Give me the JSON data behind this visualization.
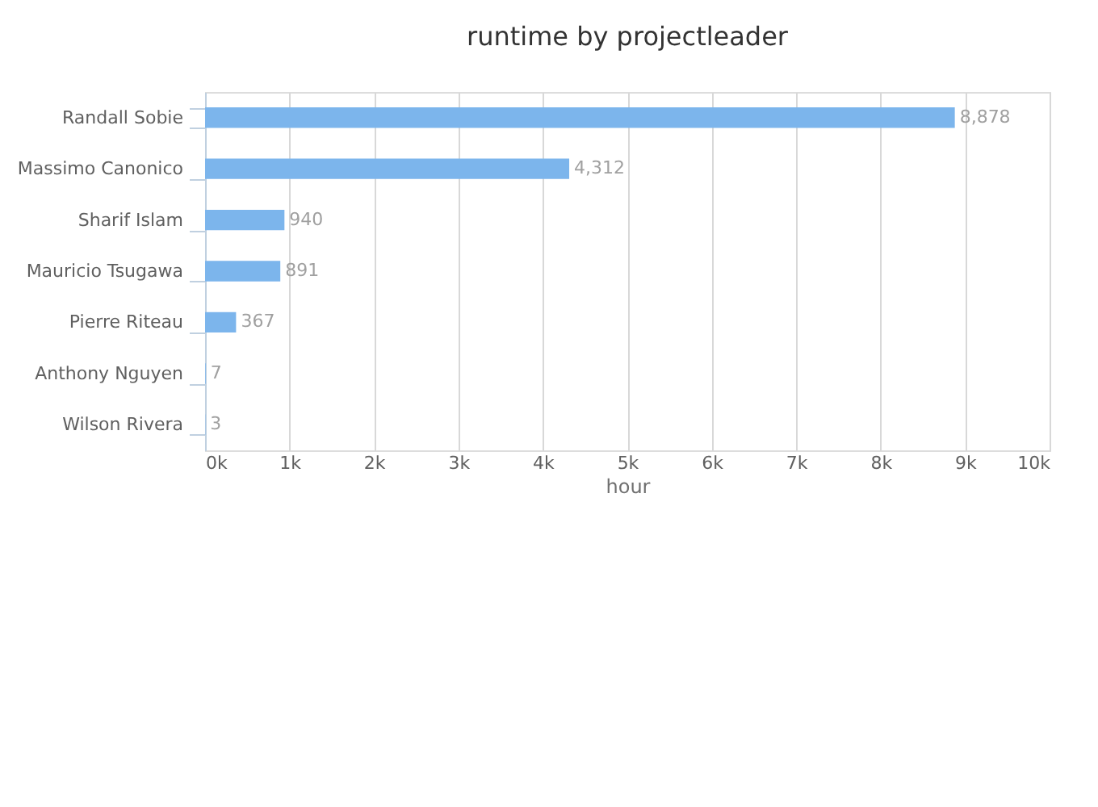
{
  "chart_data": {
    "type": "bar",
    "orientation": "horizontal",
    "title": "runtime by projectleader",
    "xlabel": "hour",
    "categories": [
      "Randall Sobie",
      "Massimo Canonico",
      "Sharif Islam",
      "Mauricio Tsugawa",
      "Pierre Riteau",
      "Anthony Nguyen",
      "Wilson Rivera"
    ],
    "values": [
      8878,
      4312,
      940,
      891,
      367,
      7,
      3
    ],
    "value_labels": [
      "8,878",
      "4,312",
      "940",
      "891",
      "367",
      "7",
      "3"
    ],
    "color": "#7cb5ec",
    "xlim": [
      0,
      10000
    ],
    "xticks": [
      {
        "value": 0,
        "label": "0k"
      },
      {
        "value": 1000,
        "label": "1k"
      },
      {
        "value": 2000,
        "label": "2k"
      },
      {
        "value": 3000,
        "label": "3k"
      },
      {
        "value": 4000,
        "label": "4k"
      },
      {
        "value": 5000,
        "label": "5k"
      },
      {
        "value": 6000,
        "label": "6k"
      },
      {
        "value": 7000,
        "label": "7k"
      },
      {
        "value": 8000,
        "label": "8k"
      },
      {
        "value": 9000,
        "label": "9k"
      },
      {
        "value": 10000,
        "label": "10k"
      }
    ],
    "grid": "x"
  }
}
